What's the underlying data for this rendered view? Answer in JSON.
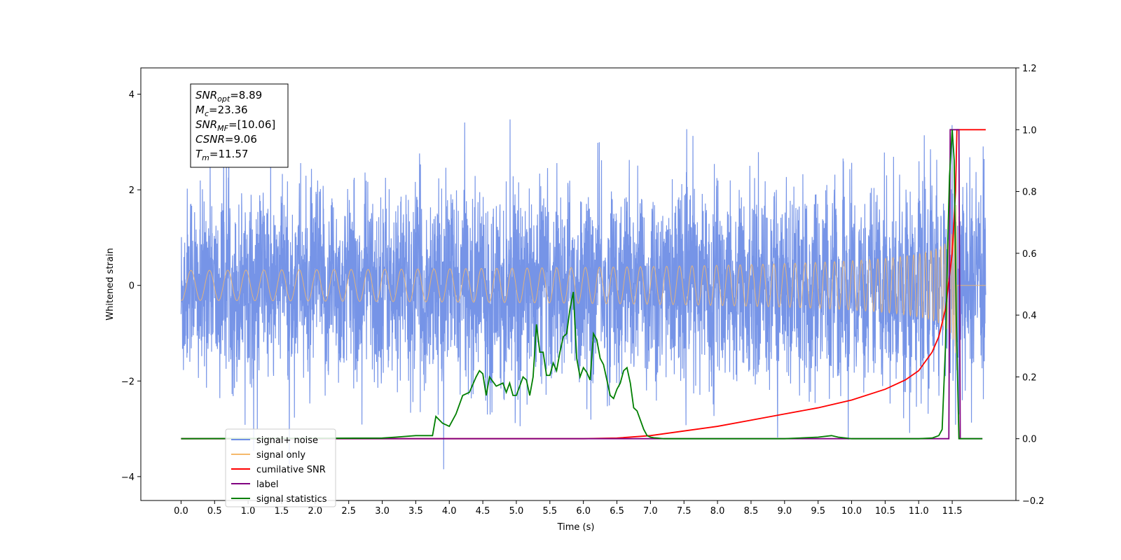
{
  "chart_data": {
    "type": "line",
    "title": "",
    "xlabel": "Time (s)",
    "ylabel": "Whitened strain",
    "xlim": [
      -0.6,
      12.45
    ],
    "ylim": [
      -4.5,
      4.55
    ],
    "y2lim": [
      -0.2,
      1.2
    ],
    "x_ticks": [
      "0.0",
      "0.5",
      "1.0",
      "1.5",
      "2.0",
      "2.5",
      "3.0",
      "3.5",
      "4.0",
      "4.5",
      "5.0",
      "5.5",
      "6.0",
      "6.5",
      "7.0",
      "7.5",
      "8.0",
      "8.5",
      "9.0",
      "9.5",
      "10.0",
      "10.5",
      "11.0",
      "11.5"
    ],
    "y_ticks": [
      "4",
      "2",
      "0",
      "−2",
      "−4"
    ],
    "y2_ticks": [
      "1.2",
      "1.0",
      "0.8",
      "0.6",
      "0.4",
      "0.2",
      "0.0",
      "−0.2"
    ],
    "grid": false,
    "legend_placement": "lower-left",
    "annotation": {
      "lines": [
        {
          "base": "SNR",
          "sub": "opt",
          "text": "=8.89"
        },
        {
          "base": "M",
          "sub": "c",
          "text": "=23.36"
        },
        {
          "base": "SNR",
          "sub": "MF",
          "text": "=[10.06]"
        },
        {
          "base": "CSNR",
          "sub": "",
          "text": "=9.06"
        },
        {
          "base": "T",
          "sub": "m",
          "text": "=11.57"
        }
      ]
    },
    "series": [
      {
        "name": "signal+ noise",
        "axis": "left",
        "color": "#6f8ee6",
        "description_values": {
          "x_start": 0.0,
          "x_end": 12.0,
          "std": 1.0
        }
      },
      {
        "name": "signal only",
        "axis": "left",
        "color": "#f5b96b",
        "chirp": {
          "t_merge": 11.57,
          "peak_amplitude": 2.3
        }
      },
      {
        "name": "cumilative SNR",
        "axis": "right",
        "color": "#ff0000",
        "x": [
          0.0,
          6.0,
          6.5,
          7.0,
          7.5,
          8.0,
          8.5,
          9.0,
          9.5,
          10.0,
          10.5,
          10.8,
          11.0,
          11.2,
          11.3,
          11.4,
          11.5,
          11.55,
          11.57,
          11.6,
          11.7,
          11.8,
          11.9,
          12.0
        ],
        "y": [
          0.0,
          0.0,
          0.002,
          0.01,
          0.025,
          0.04,
          0.06,
          0.08,
          0.1,
          0.125,
          0.16,
          0.19,
          0.22,
          0.28,
          0.33,
          0.42,
          0.6,
          0.8,
          1.0,
          1.0,
          1.0,
          1.0,
          1.0,
          1.0
        ]
      },
      {
        "name": "label",
        "axis": "right",
        "color": "#800080",
        "x": [
          0.0,
          11.45,
          11.47,
          11.6,
          11.62,
          11.95
        ],
        "y": [
          0.0,
          0.0,
          1.0,
          1.0,
          0.0,
          0.0
        ]
      },
      {
        "name": "signal statistics",
        "axis": "right",
        "color": "#007f00",
        "x": [
          0.0,
          3.0,
          3.2,
          3.5,
          3.75,
          3.8,
          3.9,
          4.0,
          4.1,
          4.2,
          4.3,
          4.4,
          4.45,
          4.5,
          4.55,
          4.6,
          4.7,
          4.8,
          4.85,
          4.9,
          4.95,
          5.0,
          5.1,
          5.15,
          5.2,
          5.25,
          5.3,
          5.35,
          5.4,
          5.45,
          5.5,
          5.55,
          5.6,
          5.65,
          5.7,
          5.75,
          5.8,
          5.85,
          5.9,
          5.95,
          6.0,
          6.05,
          6.1,
          6.15,
          6.2,
          6.25,
          6.3,
          6.35,
          6.4,
          6.45,
          6.5,
          6.55,
          6.6,
          6.65,
          6.7,
          6.75,
          6.8,
          6.85,
          6.9,
          6.95,
          7.0,
          7.05,
          7.1,
          7.15,
          7.2,
          7.3,
          7.5,
          8.0,
          9.0,
          9.5,
          9.7,
          9.8,
          10.0,
          10.5,
          11.0,
          11.2,
          11.3,
          11.35,
          11.4,
          11.43,
          11.46,
          11.5,
          11.53,
          11.56,
          11.6,
          11.65,
          11.95
        ],
        "y": [
          0.0,
          0.002,
          0.005,
          0.01,
          0.01,
          0.072,
          0.05,
          0.04,
          0.08,
          0.14,
          0.15,
          0.2,
          0.22,
          0.21,
          0.14,
          0.2,
          0.17,
          0.18,
          0.15,
          0.18,
          0.14,
          0.14,
          0.2,
          0.19,
          0.14,
          0.2,
          0.37,
          0.28,
          0.28,
          0.205,
          0.205,
          0.245,
          0.22,
          0.28,
          0.33,
          0.34,
          0.42,
          0.475,
          0.26,
          0.2,
          0.23,
          0.215,
          0.19,
          0.34,
          0.32,
          0.26,
          0.24,
          0.19,
          0.14,
          0.13,
          0.16,
          0.18,
          0.22,
          0.23,
          0.18,
          0.1,
          0.09,
          0.06,
          0.03,
          0.01,
          0.005,
          0.003,
          0.002,
          0.001,
          0.0,
          0.0,
          0.0,
          0.0,
          0.0,
          0.005,
          0.01,
          0.005,
          0.0,
          0.0,
          0.0,
          0.002,
          0.01,
          0.03,
          0.3,
          0.6,
          0.85,
          1.0,
          0.9,
          0.4,
          0.0,
          0.0,
          0.0
        ]
      }
    ]
  }
}
